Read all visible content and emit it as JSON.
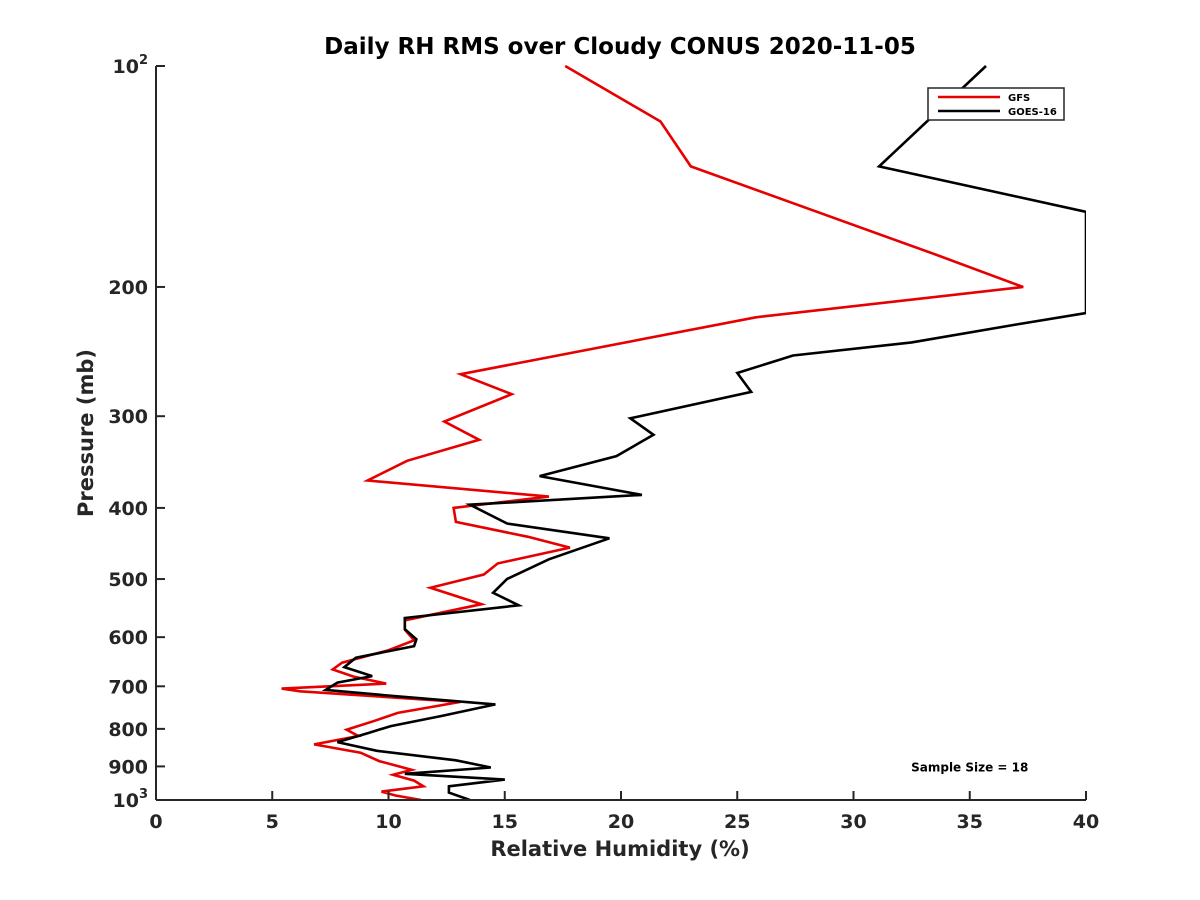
{
  "chart_data": {
    "type": "line",
    "title": "Daily RH RMS over Cloudy CONUS 2020-11-05",
    "xlabel": "Relative Humidity (%)",
    "ylabel": "Pressure (mb)",
    "xlim": [
      0,
      40
    ],
    "ylim": [
      100,
      1000
    ],
    "y_scale": "log",
    "y_reversed": true,
    "grid": false,
    "legend_position": "top-right",
    "x_ticks": [
      {
        "value": 0,
        "label": "0"
      },
      {
        "value": 5,
        "label": "5"
      },
      {
        "value": 10,
        "label": "10"
      },
      {
        "value": 15,
        "label": "15"
      },
      {
        "value": 20,
        "label": "20"
      },
      {
        "value": 25,
        "label": "25"
      },
      {
        "value": 30,
        "label": "30"
      },
      {
        "value": 35,
        "label": "35"
      },
      {
        "value": 40,
        "label": "40"
      }
    ],
    "y_ticks": [
      {
        "value": 100,
        "base": "10",
        "exp": "2"
      },
      {
        "value": 200,
        "label": "200"
      },
      {
        "value": 300,
        "label": "300"
      },
      {
        "value": 400,
        "label": "400"
      },
      {
        "value": 500,
        "label": "500"
      },
      {
        "value": 600,
        "label": "600"
      },
      {
        "value": 700,
        "label": "700"
      },
      {
        "value": 800,
        "label": "800"
      },
      {
        "value": 900,
        "label": "900"
      },
      {
        "value": 1000,
        "base": "10",
        "exp": "3"
      }
    ],
    "series": [
      {
        "name": "GFS",
        "color": "#e60000",
        "points": [
          [
            17.6,
            100
          ],
          [
            21.7,
            119
          ],
          [
            23.0,
            137
          ],
          [
            33.6,
            181
          ],
          [
            37.3,
            200
          ],
          [
            25.8,
            220
          ],
          [
            13.1,
            263
          ],
          [
            15.3,
            280
          ],
          [
            12.4,
            305
          ],
          [
            13.9,
            323
          ],
          [
            10.8,
            345
          ],
          [
            9.1,
            367
          ],
          [
            16.9,
            386
          ],
          [
            12.8,
            400
          ],
          [
            12.9,
            418
          ],
          [
            16.0,
            438
          ],
          [
            17.8,
            453
          ],
          [
            14.7,
            476
          ],
          [
            14.1,
            493
          ],
          [
            11.8,
            514
          ],
          [
            14.0,
            541
          ],
          [
            10.7,
            569
          ],
          [
            10.7,
            586
          ],
          [
            11.1,
            606
          ],
          [
            10.0,
            625
          ],
          [
            8.0,
            650
          ],
          [
            7.6,
            664
          ],
          [
            8.5,
            679
          ],
          [
            9.9,
            694
          ],
          [
            5.4,
            705
          ],
          [
            6.2,
            711
          ],
          [
            13.1,
            735
          ],
          [
            10.4,
            761
          ],
          [
            9.4,
            780
          ],
          [
            8.2,
            802
          ],
          [
            8.7,
            818
          ],
          [
            6.8,
            840
          ],
          [
            8.8,
            862
          ],
          [
            9.6,
            885
          ],
          [
            11.0,
            910
          ],
          [
            10.2,
            924
          ],
          [
            11.1,
            941
          ],
          [
            11.5,
            958
          ],
          [
            9.7,
            974
          ],
          [
            10.3,
            986
          ],
          [
            11.4,
            1000
          ]
        ]
      },
      {
        "name": "GOES-16",
        "color": "#000000",
        "points": [
          [
            35.7,
            100
          ],
          [
            31.1,
            137
          ],
          [
            40.0,
            158
          ],
          [
            40.0,
            217
          ],
          [
            37.0,
            225
          ],
          [
            32.5,
            238
          ],
          [
            27.4,
            248
          ],
          [
            25.0,
            262
          ],
          [
            25.6,
            278
          ],
          [
            20.4,
            302
          ],
          [
            21.4,
            318
          ],
          [
            19.8,
            340
          ],
          [
            16.5,
            362
          ],
          [
            20.9,
            384
          ],
          [
            13.5,
            396
          ],
          [
            15.1,
            420
          ],
          [
            19.5,
            440
          ],
          [
            16.9,
            470
          ],
          [
            15.1,
            500
          ],
          [
            14.5,
            522
          ],
          [
            15.6,
            543
          ],
          [
            10.7,
            565
          ],
          [
            10.7,
            585
          ],
          [
            11.2,
            604
          ],
          [
            11.1,
            617
          ],
          [
            8.6,
            640
          ],
          [
            8.1,
            659
          ],
          [
            9.3,
            678
          ],
          [
            7.8,
            692
          ],
          [
            7.3,
            708
          ],
          [
            10.3,
            722
          ],
          [
            14.6,
            741
          ],
          [
            12.3,
            768
          ],
          [
            10.1,
            793
          ],
          [
            9.1,
            811
          ],
          [
            7.8,
            834
          ],
          [
            9.5,
            857
          ],
          [
            12.9,
            883
          ],
          [
            14.4,
            903
          ],
          [
            10.7,
            921
          ],
          [
            15.0,
            938
          ],
          [
            12.6,
            958
          ],
          [
            12.6,
            977
          ],
          [
            13.5,
            1000
          ]
        ]
      }
    ],
    "annotations": [
      {
        "text": "Sample Size = 18",
        "x": 35.0,
        "y": 903
      }
    ]
  }
}
